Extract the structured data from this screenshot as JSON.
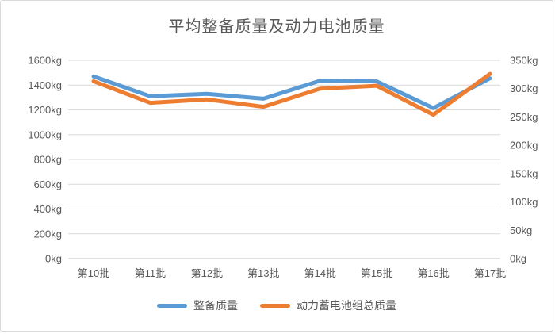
{
  "chart": {
    "title": "平均整备质量及动力电池质量"
  },
  "chart_data": {
    "type": "line",
    "title": "平均整备质量及动力电池质量",
    "categories": [
      "第10批",
      "第11批",
      "第12批",
      "第13批",
      "第14批",
      "第15批",
      "第16批",
      "第17批"
    ],
    "series": [
      {
        "name": "整备质量",
        "axis": "left",
        "color": "#5B9BD5",
        "values": [
          1470,
          1310,
          1330,
          1290,
          1435,
          1430,
          1215,
          1455
        ]
      },
      {
        "name": "动力蓄电池组总质量",
        "axis": "right",
        "color": "#ED7D31",
        "values": [
          313,
          275,
          281,
          268,
          300,
          305,
          254,
          326
        ]
      }
    ],
    "axes": {
      "left": {
        "min": 0,
        "max": 1600,
        "step": 200,
        "unit": "kg",
        "labels_top_to_bottom": [
          "1600kg",
          "1400kg",
          "1200kg",
          "1000kg",
          "800kg",
          "600kg",
          "400kg",
          "200kg",
          "0kg"
        ]
      },
      "right": {
        "min": 0,
        "max": 350,
        "step": 50,
        "unit": "kg",
        "labels_top_to_bottom": [
          "350kg",
          "300kg",
          "250kg",
          "200kg",
          "150kg",
          "100kg",
          "50kg",
          "0kg"
        ]
      },
      "x": {
        "labels": [
          "第10批",
          "第11批",
          "第12批",
          "第13批",
          "第14批",
          "第15批",
          "第16批",
          "第17批"
        ]
      }
    },
    "grid": true,
    "legend_position": "bottom",
    "colors": {
      "text": "#595959",
      "gridline": "#D9D9D9",
      "axis_line": "#BFBFBF",
      "frame_border": "#D9D9D9",
      "series_blue": "#5B9BD5",
      "series_orange": "#ED7D31"
    }
  }
}
